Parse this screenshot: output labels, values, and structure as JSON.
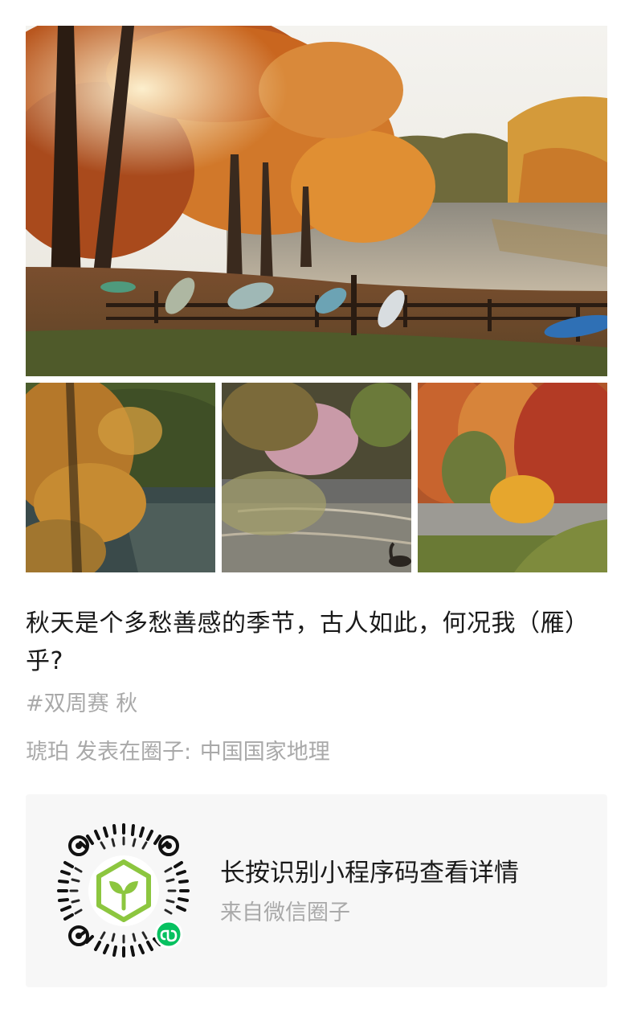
{
  "post": {
    "caption": "秋天是个多愁善感的季节，古人如此，何况我（雁）乎?",
    "hashtag": "#双周赛 秋",
    "author": "琥珀",
    "posted_in_prefix": "发表在圈子:",
    "circle_name": "中国国家地理"
  },
  "photos": {
    "main": "autumn-lake-canoes-photo",
    "thumb_1": "autumn-tree-lake-photo",
    "thumb_2": "lake-reflection-goose-photo",
    "thumb_3": "red-autumn-forest-lake-photo"
  },
  "mini_program_card": {
    "title": "长按识别小程序码查看详情",
    "subtitle": "来自微信圈子",
    "qr_icon": "mini-program-qr-code-icon",
    "badge_icon": "mini-program-badge-icon"
  },
  "colors": {
    "text_primary": "#1a1a1a",
    "text_secondary": "#a9a9a9",
    "card_background": "#f7f7f7",
    "accent_green": "#07c160",
    "sprout_green": "#8cc63f"
  }
}
